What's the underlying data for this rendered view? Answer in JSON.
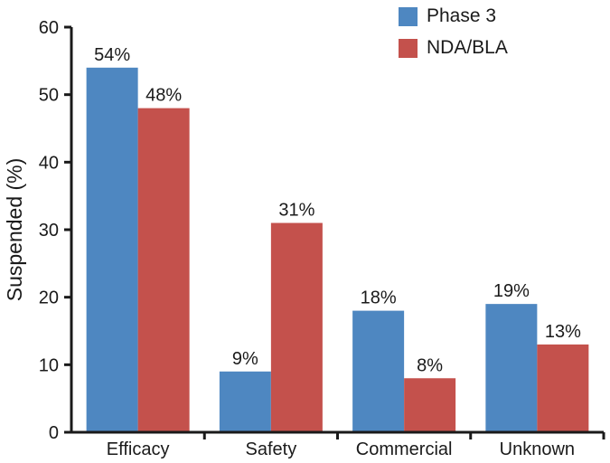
{
  "chart_data": {
    "type": "bar",
    "title": "",
    "categories": [
      "Efficacy",
      "Safety",
      "Commercial",
      "Unknown"
    ],
    "series": [
      {
        "name": "Phase 3",
        "color": "#4E87C1",
        "values": [
          54,
          9,
          18,
          19
        ]
      },
      {
        "name": "NDA/BLA",
        "color": "#C4514C",
        "values": [
          48,
          31,
          8,
          13
        ]
      }
    ],
    "value_labels": [
      [
        "54%",
        "9%",
        "18%",
        "19%"
      ],
      [
        "48%",
        "31%",
        "8%",
        "13%"
      ]
    ],
    "xlabel": "",
    "ylabel": "Suspended (%)",
    "ylim": [
      0,
      60
    ],
    "ytick_step": 10,
    "ytick_labels": [
      "0",
      "10",
      "20",
      "30",
      "40",
      "50",
      "60"
    ],
    "grid": false,
    "legend_position": "top-right",
    "axis_color": "#1A1A1A",
    "text_color": "#1A1A1A"
  }
}
